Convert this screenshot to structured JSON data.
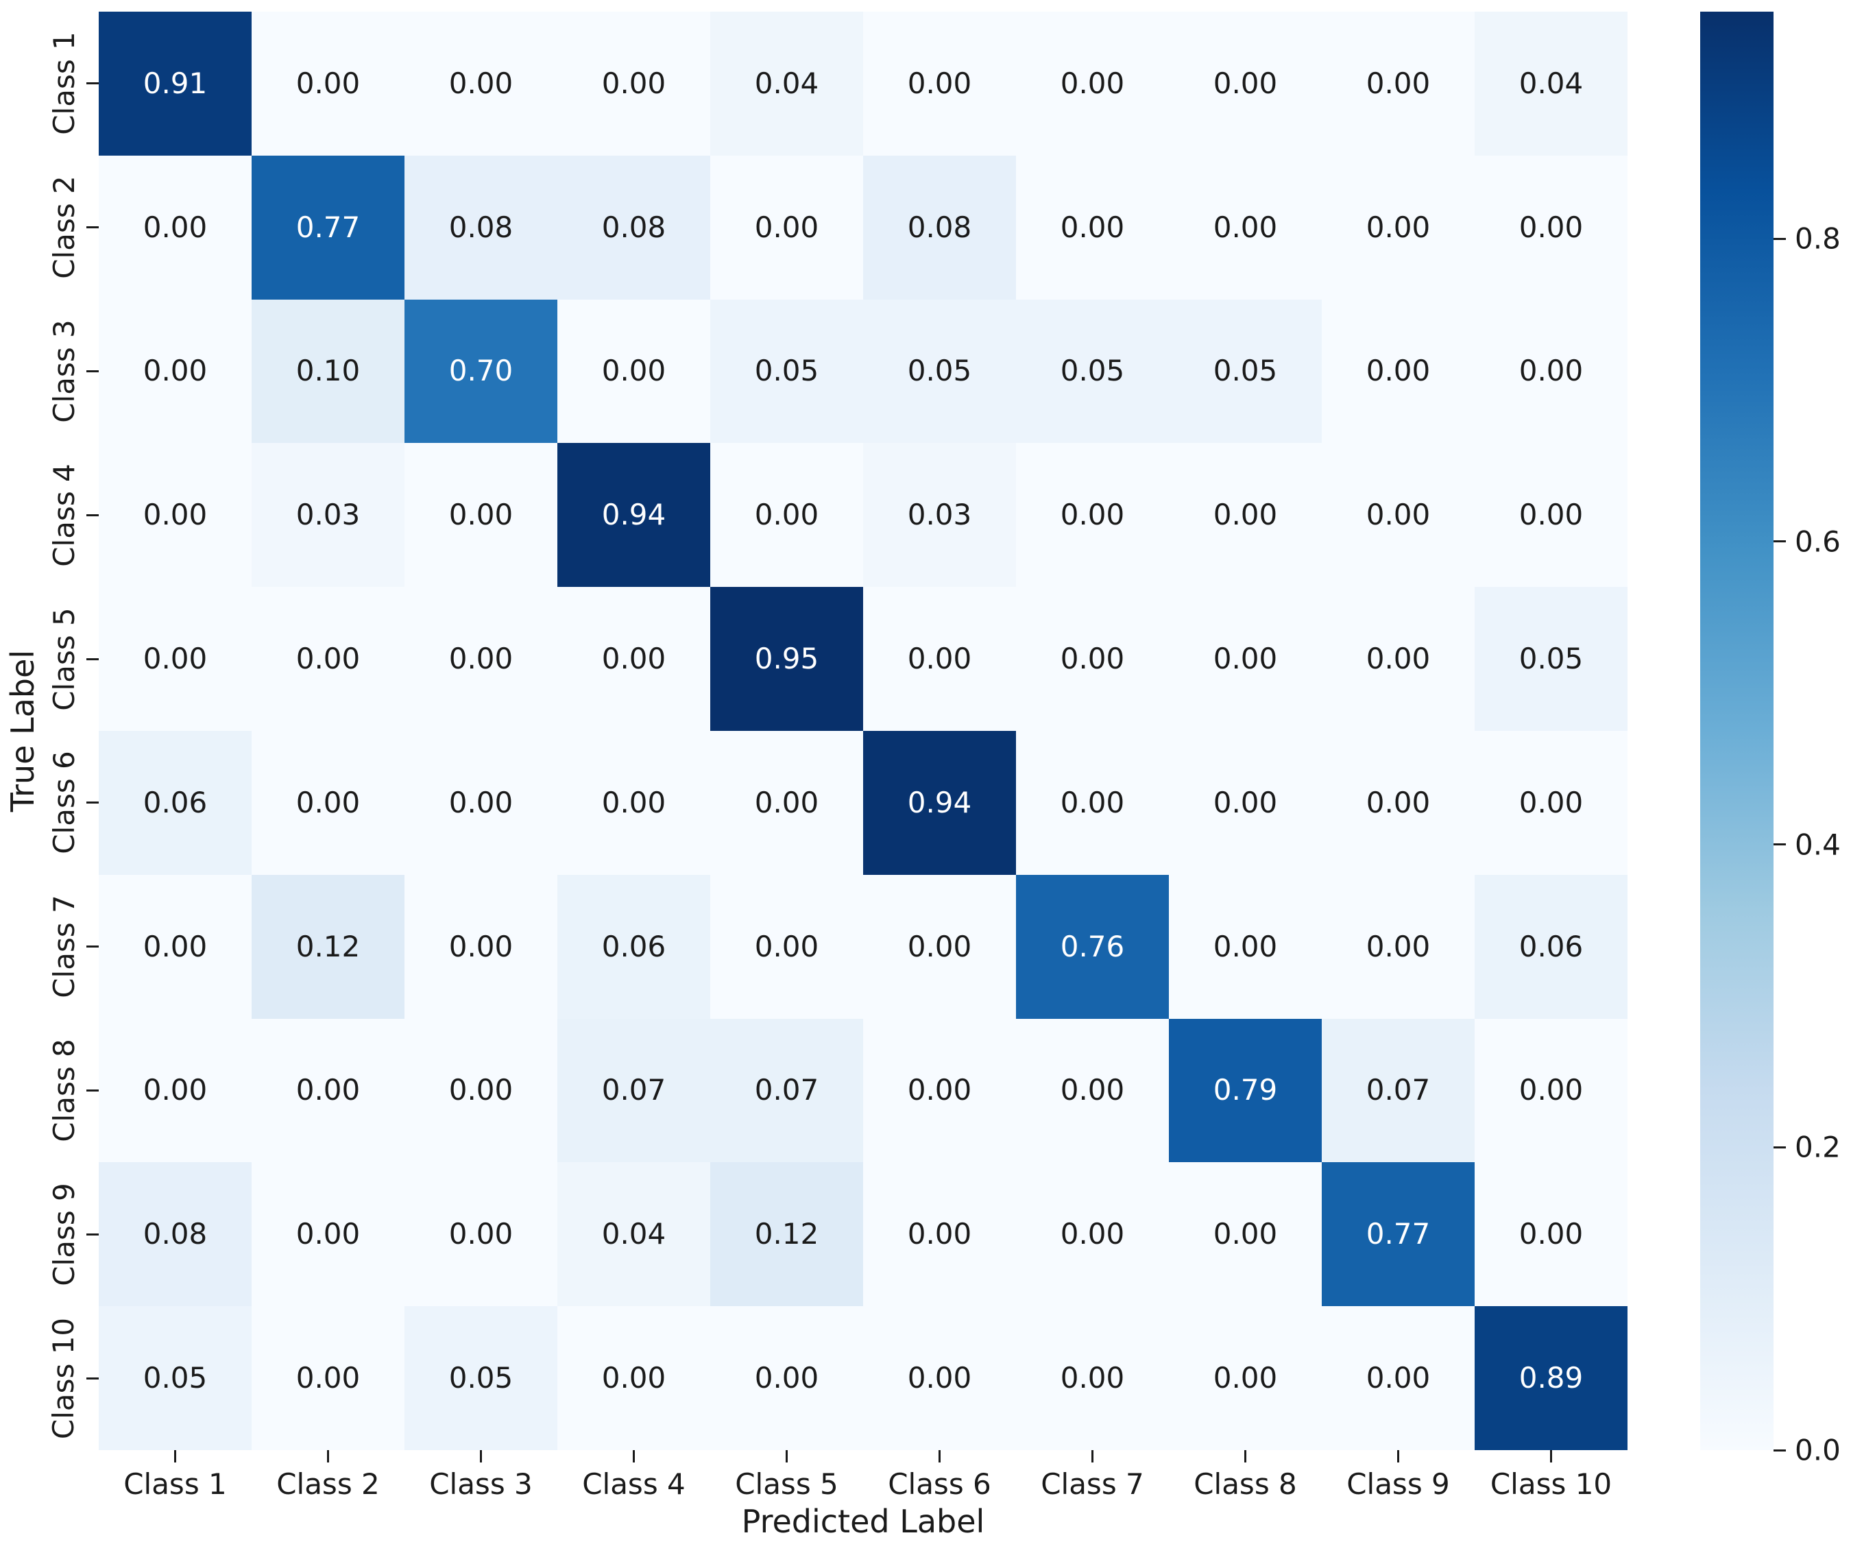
{
  "chart_data": {
    "type": "heatmap",
    "title": "",
    "xlabel": "Predicted Label",
    "ylabel": "True Label",
    "x_categories": [
      "Class 1",
      "Class 2",
      "Class 3",
      "Class 4",
      "Class 5",
      "Class 6",
      "Class 7",
      "Class 8",
      "Class 9",
      "Class 10"
    ],
    "y_categories": [
      "Class 1",
      "Class 2",
      "Class 3",
      "Class 4",
      "Class 5",
      "Class 6",
      "Class 7",
      "Class 8",
      "Class 9",
      "Class 10"
    ],
    "values": [
      [
        0.91,
        0.0,
        0.0,
        0.0,
        0.04,
        0.0,
        0.0,
        0.0,
        0.0,
        0.04
      ],
      [
        0.0,
        0.77,
        0.08,
        0.08,
        0.0,
        0.08,
        0.0,
        0.0,
        0.0,
        0.0
      ],
      [
        0.0,
        0.1,
        0.7,
        0.0,
        0.05,
        0.05,
        0.05,
        0.05,
        0.0,
        0.0
      ],
      [
        0.0,
        0.03,
        0.0,
        0.94,
        0.0,
        0.03,
        0.0,
        0.0,
        0.0,
        0.0
      ],
      [
        0.0,
        0.0,
        0.0,
        0.0,
        0.95,
        0.0,
        0.0,
        0.0,
        0.0,
        0.05
      ],
      [
        0.06,
        0.0,
        0.0,
        0.0,
        0.0,
        0.94,
        0.0,
        0.0,
        0.0,
        0.0
      ],
      [
        0.0,
        0.12,
        0.0,
        0.06,
        0.0,
        0.0,
        0.76,
        0.0,
        0.0,
        0.06
      ],
      [
        0.0,
        0.0,
        0.0,
        0.07,
        0.07,
        0.0,
        0.0,
        0.79,
        0.07,
        0.0
      ],
      [
        0.08,
        0.0,
        0.0,
        0.04,
        0.12,
        0.0,
        0.0,
        0.0,
        0.77,
        0.0
      ],
      [
        0.05,
        0.0,
        0.05,
        0.0,
        0.0,
        0.0,
        0.0,
        0.0,
        0.0,
        0.89
      ]
    ],
    "value_decimals": 2,
    "colormap": "Blues",
    "vmin": 0.0,
    "vmax": 0.95,
    "grid": false,
    "legend_position": "colorbar-right",
    "colorbar": {
      "tick_values": [
        0.8,
        0.6,
        0.4,
        0.2,
        0.0
      ],
      "tick_labels": [
        "0.8",
        "0.6",
        "0.4",
        "0.2",
        "0.0"
      ]
    },
    "colors": {
      "background": "#ffffff",
      "blues_stops": [
        "#f7fbff",
        "#deebf7",
        "#c6dbef",
        "#9ecae1",
        "#6baed6",
        "#4292c6",
        "#2171b5",
        "#08519c",
        "#08306b"
      ],
      "annotation_on_light": "#1a1a1a",
      "annotation_on_dark": "#ffffff",
      "tick_color": "#1a1a1a"
    }
  }
}
